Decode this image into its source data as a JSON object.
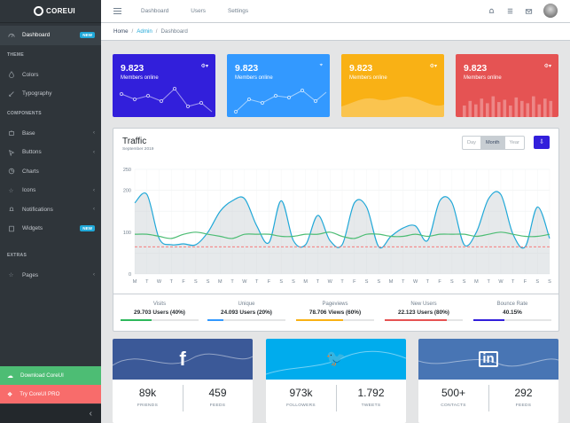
{
  "brand": {
    "name": "COREUI"
  },
  "sidebar": {
    "dashboard": {
      "label": "Dashboard",
      "badge": "NEW"
    },
    "section_theme": "THEME",
    "colors": "Colors",
    "typography": "Typography",
    "section_components": "COMPONENTS",
    "base": "Base",
    "buttons": "Buttons",
    "charts": "Charts",
    "icons": "Icons",
    "notifications": "Notifications",
    "widgets": {
      "label": "Widgets",
      "badge": "NEW"
    },
    "section_extras": "EXTRAS",
    "pages": "Pages",
    "download": "Download CoreUI",
    "try_pro": "Try CoreUI PRO",
    "minimizer": "‹"
  },
  "header": {
    "links": [
      "Dashboard",
      "Users",
      "Settings"
    ]
  },
  "breadcrumb": [
    "Home",
    "Admin",
    "Dashboard"
  ],
  "stats": [
    {
      "value": "9.823",
      "label": "Members online",
      "color": "#321fdb"
    },
    {
      "value": "9.823",
      "label": "Members online",
      "color": "#39f"
    },
    {
      "value": "9.823",
      "label": "Members online",
      "color": "#f9b115"
    },
    {
      "value": "9.823",
      "label": "Members online",
      "color": "#e55353"
    }
  ],
  "traffic": {
    "title": "Traffic",
    "subtitle": "September 2019",
    "periods": [
      "Day",
      "Month",
      "Year"
    ],
    "active_period": "Month",
    "footer": [
      {
        "label": "Visits",
        "value": "29.703 Users (40%)",
        "percent": 40,
        "color": "#2eb85c"
      },
      {
        "label": "Unique",
        "value": "24.093 Users (20%)",
        "percent": 20,
        "color": "#39f"
      },
      {
        "label": "Pageviews",
        "value": "78.706 Views (60%)",
        "percent": 60,
        "color": "#f9b115"
      },
      {
        "label": "New Users",
        "value": "22.123 Users (80%)",
        "percent": 80,
        "color": "#e55353"
      },
      {
        "label": "Bounce Rate",
        "value": "40.15%",
        "percent": 40.15,
        "color": "#321fdb"
      }
    ]
  },
  "chart_data": {
    "type": "line",
    "categories": [
      "M",
      "T",
      "W",
      "T",
      "F",
      "S",
      "S",
      "M",
      "T",
      "W",
      "T",
      "F",
      "S",
      "S",
      "M",
      "T",
      "W",
      "T",
      "F",
      "S",
      "S",
      "M",
      "T",
      "W",
      "T",
      "F",
      "S",
      "S",
      "M",
      "T",
      "W",
      "T",
      "F",
      "S",
      "S"
    ],
    "ylim": [
      0,
      250
    ],
    "yticks": [
      0,
      50,
      100,
      150,
      200,
      250
    ],
    "tick_labels_shown": [
      "0",
      "100",
      "200",
      "250"
    ],
    "grid": true,
    "series": [
      {
        "values": [
          170,
          190,
          85,
          70,
          72,
          70,
          100,
          150,
          175,
          180,
          115,
          75,
          175,
          80,
          70,
          140,
          80,
          70,
          170,
          160,
          65,
          90,
          110,
          115,
          80,
          175,
          170,
          70,
          100,
          180,
          190,
          95,
          65,
          160,
          85
        ],
        "color": "#20a8d8",
        "fill": true
      },
      {
        "values": [
          95,
          95,
          90,
          85,
          95,
          100,
          95,
          90,
          85,
          95,
          95,
          95,
          90,
          90,
          95,
          95,
          100,
          90,
          85,
          95,
          95,
          90,
          90,
          95,
          90,
          95,
          95,
          95,
          90,
          95,
          100,
          95,
          90,
          90,
          95
        ],
        "color": "#4dbd74"
      },
      {
        "values": [
          65,
          65,
          65,
          65,
          65,
          65,
          65,
          65,
          65,
          65,
          65,
          65,
          65,
          65,
          65,
          65,
          65,
          65,
          65,
          65,
          65,
          65,
          65,
          65,
          65,
          65,
          65,
          65,
          65,
          65,
          65,
          65,
          65,
          65,
          65
        ],
        "color": "#f86c6b",
        "dashed": true
      }
    ]
  },
  "social": [
    {
      "network": "facebook",
      "glyph": "f",
      "color": "#3b5998",
      "n1": "89k",
      "t1": "FRIENDS",
      "n2": "459",
      "t2": "FEEDS"
    },
    {
      "network": "twitter",
      "glyph": "🐦",
      "color": "#00aced",
      "n1": "973k",
      "t1": "FOLLOWERS",
      "n2": "1.792",
      "t2": "TWEETS"
    },
    {
      "network": "linkedin",
      "glyph": "in",
      "color": "#4875b4",
      "n1": "500+",
      "t1": "CONTACTS",
      "n2": "292",
      "t2": "FEEDS"
    }
  ]
}
